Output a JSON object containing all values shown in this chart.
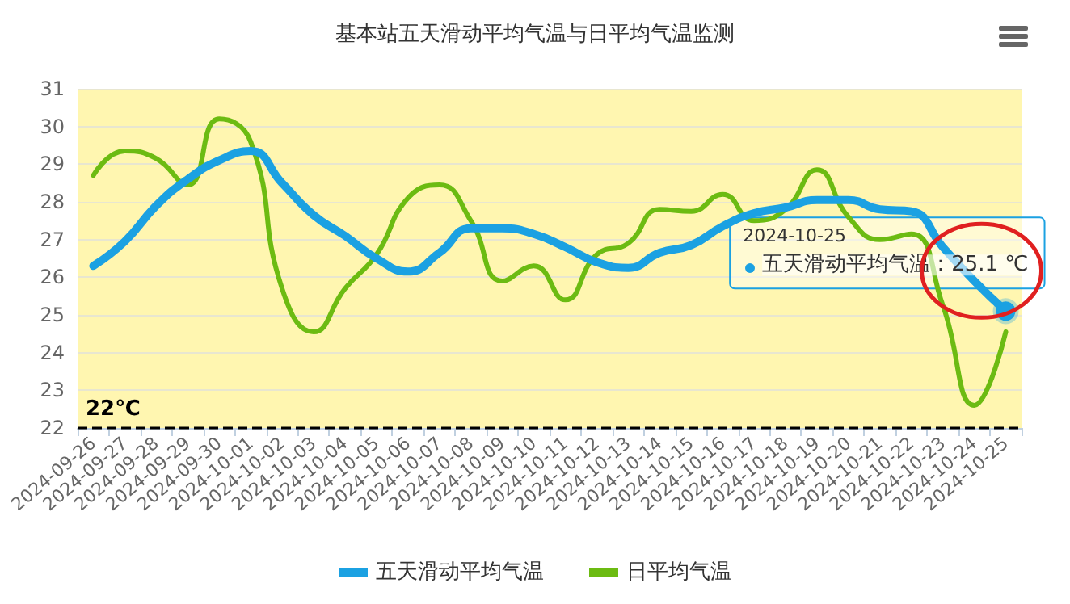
{
  "chart_data": {
    "type": "line",
    "title": "基本站五天滑动平均气温与日平均气温监测",
    "categories": [
      "2024-09-26",
      "2024-09-27",
      "2024-09-28",
      "2024-09-29",
      "2024-09-30",
      "2024-10-01",
      "2024-10-02",
      "2024-10-03",
      "2024-10-04",
      "2024-10-05",
      "2024-10-06",
      "2024-10-07",
      "2024-10-08",
      "2024-10-09",
      "2024-10-10",
      "2024-10-11",
      "2024-10-12",
      "2024-10-13",
      "2024-10-14",
      "2024-10-15",
      "2024-10-16",
      "2024-10-17",
      "2024-10-18",
      "2024-10-19",
      "2024-10-20",
      "2024-10-21",
      "2024-10-22",
      "2024-10-23",
      "2024-10-24",
      "2024-10-25"
    ],
    "series": [
      {
        "name": "五天滑动平均气温",
        "color": "#1ba1e2",
        "values": [
          26.3,
          26.95,
          27.9,
          28.6,
          29.1,
          29.35,
          28.5,
          27.65,
          27.1,
          26.5,
          26.15,
          26.65,
          27.3,
          27.3,
          27.15,
          26.8,
          26.4,
          26.25,
          26.65,
          26.85,
          27.35,
          27.7,
          27.85,
          28.05,
          28.05,
          27.8,
          27.75,
          26.8,
          25.9,
          25.1
        ]
      },
      {
        "name": "日平均气温",
        "color": "#6cbb12",
        "values": [
          28.7,
          29.35,
          29.15,
          28.45,
          30.2,
          29.6,
          25.7,
          24.55,
          25.7,
          26.6,
          28.1,
          28.45,
          27.5,
          25.9,
          26.3,
          25.4,
          26.6,
          26.9,
          27.8,
          27.75,
          28.2,
          27.5,
          27.8,
          28.85,
          27.6,
          27.0,
          27.15,
          25.25,
          22.6,
          24.55
        ]
      }
    ],
    "ylim": [
      22,
      31
    ],
    "yticks": [
      22,
      23,
      24,
      25,
      26,
      27,
      28,
      29,
      30,
      31
    ],
    "grid": "y",
    "legend": "bottom",
    "marker": "none",
    "line_style": "solid",
    "ref_lines": [
      {
        "axis": "y",
        "value": 22,
        "label": "22℃",
        "color": "#000000",
        "line_style": "dashed"
      }
    ],
    "annotations": [
      {
        "text": "五天滑动平均气温：25.1 ℃",
        "x": "2024-10-25",
        "y": 25.1
      }
    ]
  }
}
